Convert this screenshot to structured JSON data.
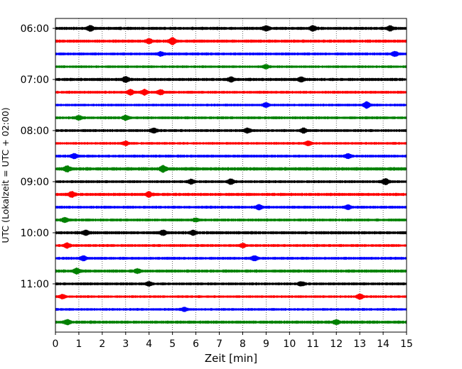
{
  "chart_data": {
    "type": "line",
    "xlabel": "Zeit  [min]",
    "ylabel": "UTC (Lokalzeit = UTC + 02:00)",
    "xlim": [
      0,
      15
    ],
    "x_ticks": [
      0,
      1,
      2,
      3,
      4,
      5,
      6,
      7,
      8,
      9,
      10,
      11,
      12,
      13,
      14,
      15
    ],
    "y_tick_labels": [
      "06:00",
      "07:00",
      "08:00",
      "09:00",
      "10:00",
      "11:00"
    ],
    "grid": "vertical dotted lines at each minute",
    "colors": [
      "#000000",
      "#ff0000",
      "#0000ff",
      "#008000"
    ],
    "traces": [
      {
        "start": "06:00",
        "color": "#000000",
        "level": 0.55,
        "events": [
          [
            1.5,
            0.7
          ],
          [
            9.0,
            0.6
          ],
          [
            11.0,
            0.6
          ],
          [
            14.3,
            0.6
          ]
        ]
      },
      {
        "start": "06:15",
        "color": "#ff0000",
        "level": 0.55,
        "events": [
          [
            4.0,
            0.5
          ],
          [
            5.0,
            0.9
          ]
        ]
      },
      {
        "start": "06:30",
        "color": "#0000ff",
        "level": 0.5,
        "events": [
          [
            4.5,
            0.5
          ],
          [
            14.5,
            0.6
          ]
        ]
      },
      {
        "start": "06:45",
        "color": "#008000",
        "level": 0.45,
        "events": [
          [
            9.0,
            0.5
          ]
        ]
      },
      {
        "start": "07:00",
        "color": "#000000",
        "level": 0.55,
        "events": [
          [
            3.0,
            0.7
          ],
          [
            7.5,
            0.6
          ],
          [
            10.5,
            0.6
          ]
        ]
      },
      {
        "start": "07:15",
        "color": "#ff0000",
        "level": 0.5,
        "events": [
          [
            3.2,
            0.7
          ],
          [
            3.8,
            0.7
          ],
          [
            4.5,
            0.6
          ]
        ]
      },
      {
        "start": "07:30",
        "color": "#0000ff",
        "level": 0.45,
        "events": [
          [
            9.0,
            0.6
          ],
          [
            13.3,
            0.9
          ]
        ]
      },
      {
        "start": "07:45",
        "color": "#008000",
        "level": 0.5,
        "events": [
          [
            1.0,
            0.5
          ],
          [
            3.0,
            0.6
          ]
        ]
      },
      {
        "start": "08:00",
        "color": "#000000",
        "level": 0.5,
        "events": [
          [
            4.2,
            0.6
          ],
          [
            8.2,
            0.6
          ],
          [
            10.6,
            0.6
          ]
        ]
      },
      {
        "start": "08:15",
        "color": "#ff0000",
        "level": 0.45,
        "events": [
          [
            3.0,
            0.5
          ],
          [
            10.8,
            0.6
          ]
        ]
      },
      {
        "start": "08:30",
        "color": "#0000ff",
        "level": 0.5,
        "events": [
          [
            0.8,
            0.6
          ],
          [
            12.5,
            0.6
          ]
        ]
      },
      {
        "start": "08:45",
        "color": "#008000",
        "level": 0.6,
        "events": [
          [
            0.5,
            0.7
          ],
          [
            4.6,
            0.8
          ]
        ]
      },
      {
        "start": "09:00",
        "color": "#000000",
        "level": 0.5,
        "events": [
          [
            5.8,
            0.6
          ],
          [
            7.5,
            0.7
          ],
          [
            14.1,
            0.8
          ]
        ]
      },
      {
        "start": "09:15",
        "color": "#ff0000",
        "level": 0.55,
        "events": [
          [
            0.7,
            0.7
          ],
          [
            4.0,
            0.6
          ]
        ]
      },
      {
        "start": "09:30",
        "color": "#0000ff",
        "level": 0.5,
        "events": [
          [
            8.7,
            0.6
          ],
          [
            12.5,
            0.5
          ]
        ]
      },
      {
        "start": "09:45",
        "color": "#008000",
        "level": 0.5,
        "events": [
          [
            0.4,
            0.6
          ],
          [
            6.0,
            0.4
          ]
        ]
      },
      {
        "start": "10:00",
        "color": "#000000",
        "level": 0.55,
        "events": [
          [
            1.3,
            0.6
          ],
          [
            4.6,
            0.6
          ],
          [
            5.9,
            0.6
          ]
        ]
      },
      {
        "start": "10:15",
        "color": "#ff0000",
        "level": 0.5,
        "events": [
          [
            0.5,
            0.6
          ],
          [
            8.0,
            0.5
          ]
        ]
      },
      {
        "start": "10:30",
        "color": "#0000ff",
        "level": 0.5,
        "events": [
          [
            1.2,
            0.6
          ],
          [
            8.5,
            0.6
          ]
        ]
      },
      {
        "start": "10:45",
        "color": "#008000",
        "level": 0.55,
        "events": [
          [
            0.9,
            0.7
          ],
          [
            3.5,
            0.5
          ]
        ]
      },
      {
        "start": "11:00",
        "color": "#000000",
        "level": 0.5,
        "events": [
          [
            4.0,
            0.5
          ],
          [
            10.5,
            0.5
          ]
        ]
      },
      {
        "start": "11:15",
        "color": "#ff0000",
        "level": 0.45,
        "events": [
          [
            0.3,
            0.5
          ],
          [
            13.0,
            0.7
          ]
        ]
      },
      {
        "start": "11:30",
        "color": "#0000ff",
        "level": 0.45,
        "events": [
          [
            5.5,
            0.5
          ]
        ]
      },
      {
        "start": "11:45",
        "color": "#008000",
        "level": 0.55,
        "events": [
          [
            0.5,
            0.6
          ],
          [
            12.0,
            0.5
          ]
        ]
      }
    ]
  }
}
